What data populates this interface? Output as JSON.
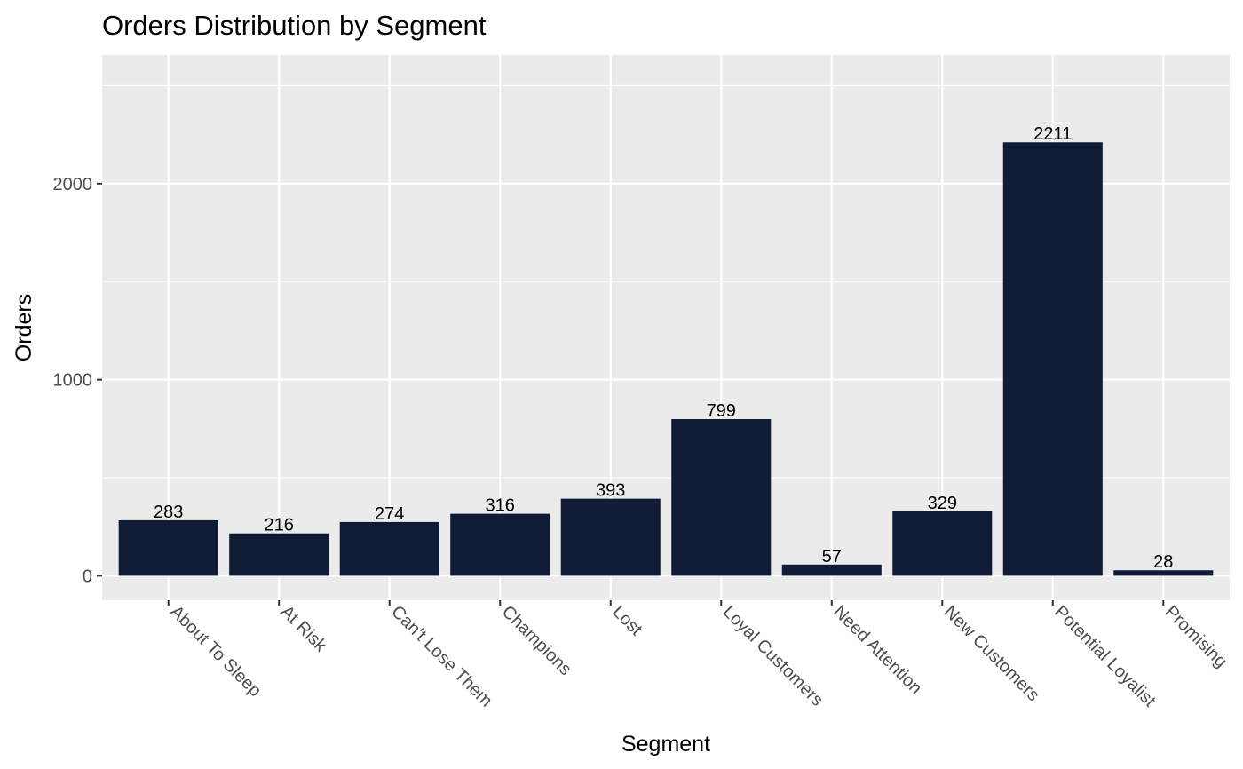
{
  "chart_data": {
    "type": "bar",
    "title": "Orders  Distribution by Segment",
    "xlabel": "Segment",
    "ylabel": "Orders",
    "categories": [
      "About To Sleep",
      "At Risk",
      "Can't Lose Them",
      "Champions",
      "Lost",
      "Loyal Customers",
      "Need Attention",
      "New Customers",
      "Potential Loyalist",
      "Promising"
    ],
    "values": [
      283,
      216,
      274,
      316,
      393,
      799,
      57,
      329,
      2211,
      28
    ],
    "data_labels": [
      "283",
      "216",
      "274",
      "316",
      "393",
      "799",
      "57",
      "329",
      "2211",
      "28"
    ],
    "ylim": [
      -125,
      2656
    ],
    "y_ticks": [
      0,
      1000,
      2000
    ],
    "y_tick_labels": [
      "0",
      "1000",
      "2000"
    ],
    "grid": true,
    "legend": "none",
    "bar_color": "#101b35",
    "panel_background": "#ebebeb",
    "gridline_color": "#ffffff"
  }
}
